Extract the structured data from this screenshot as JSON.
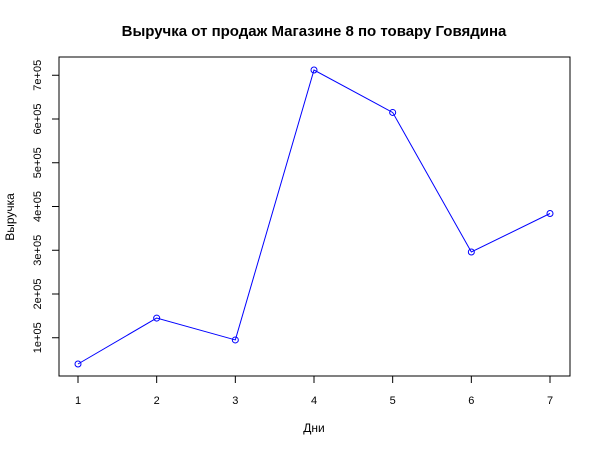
{
  "chart_data": {
    "type": "line",
    "title": "Выручка от продаж Магазине 8 по товару Говядина",
    "xlabel": "Дни",
    "ylabel": "Выручка",
    "x": [
      1,
      2,
      3,
      4,
      5,
      6,
      7
    ],
    "x_ticks": [
      "1",
      "2",
      "3",
      "4",
      "5",
      "6",
      "7"
    ],
    "y_ticks": [
      {
        "value": 100000,
        "label": "1e+05"
      },
      {
        "value": 200000,
        "label": "2e+05"
      },
      {
        "value": 300000,
        "label": "3e+05"
      },
      {
        "value": 400000,
        "label": "4e+05"
      },
      {
        "value": 500000,
        "label": "5e+05"
      },
      {
        "value": 600000,
        "label": "6e+05"
      },
      {
        "value": 700000,
        "label": "7e+05"
      }
    ],
    "series": [
      {
        "values": [
          40000,
          145000,
          95000,
          712000,
          615000,
          296000,
          384000
        ],
        "color": "#0000ff",
        "marker": "open-circle"
      }
    ],
    "xlim": [
      1,
      7
    ],
    "ylim": [
      40000,
      712000
    ],
    "grid": false,
    "legend": "none"
  }
}
